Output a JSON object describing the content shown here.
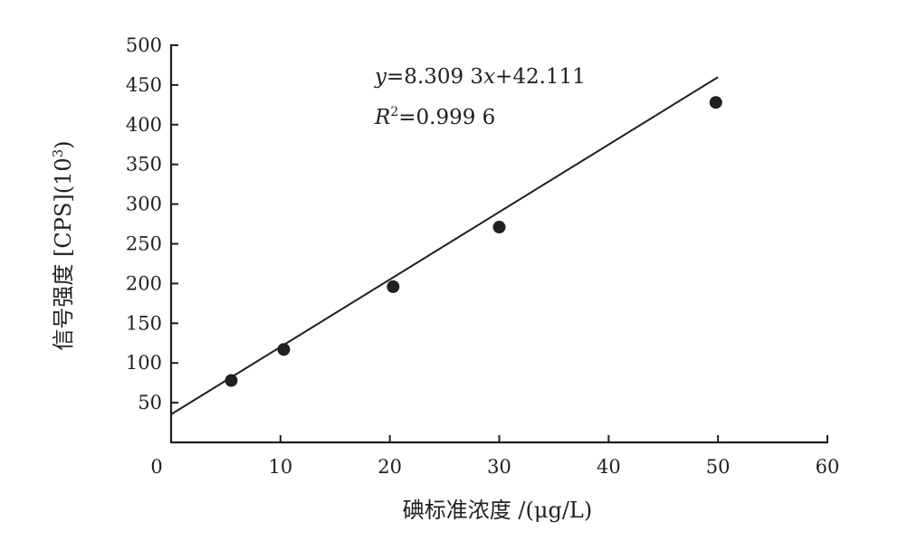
{
  "chart_data": {
    "type": "scatter",
    "title": "",
    "xlabel": "碘标准浓度 /(μg/L)",
    "ylabel": "信号强度 [CPS](10",
    "ylabel_exponent": "3",
    "ylabel_close": ")",
    "xlim": [
      0,
      60
    ],
    "ylim": [
      0,
      500
    ],
    "x_ticks": [
      10,
      20,
      30,
      40,
      50,
      60
    ],
    "y_ticks": [
      50,
      100,
      150,
      200,
      250,
      300,
      350,
      400,
      450,
      500
    ],
    "origin_label": "0",
    "grid": false,
    "series": [
      {
        "points": [
          {
            "x": 5.5,
            "y": 78
          },
          {
            "x": 10.3,
            "y": 117
          },
          {
            "x": 20.3,
            "y": 196
          },
          {
            "x": 30.0,
            "y": 271
          },
          {
            "x": 49.8,
            "y": 428
          }
        ]
      }
    ],
    "fit_line": {
      "slope": 8.3093,
      "intercept": 42.111,
      "x_range": [
        0,
        50
      ]
    },
    "annotations": {
      "equation_y": "y",
      "equation_rest": "=8.309 3",
      "equation_x": "x",
      "equation_tail": "+42.111",
      "r2_label": "R",
      "r2_sup": "2",
      "r2_value": "=0.999 6"
    }
  }
}
